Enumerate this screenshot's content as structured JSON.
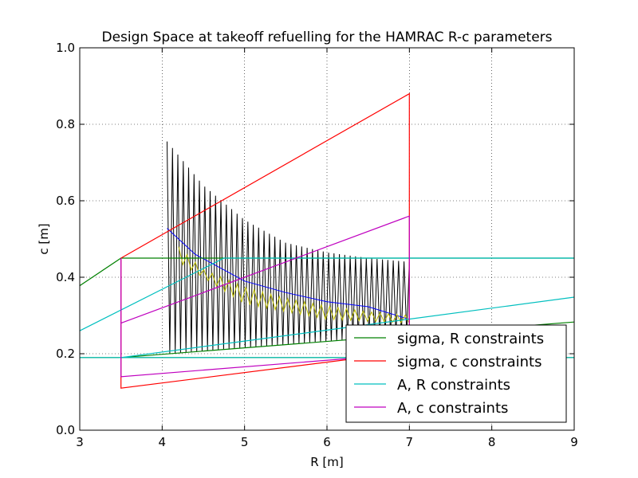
{
  "chart_data": {
    "type": "line",
    "title": "Design Space at takeoff refuelling for the HAMRAC R-c parameters",
    "xlabel": "R [m]",
    "ylabel": "c [m]",
    "xlim": [
      3,
      9
    ],
    "ylim": [
      0.0,
      1.0
    ],
    "xticks": [
      "3",
      "4",
      "5",
      "6",
      "7",
      "8",
      "9"
    ],
    "yticks": [
      "0.0",
      "0.2",
      "0.4",
      "0.6",
      "0.8",
      "1.0"
    ],
    "grid": true,
    "legend_position": "lower-right",
    "series": [
      {
        "name": "sigma, R constraints",
        "color": "#008000",
        "segments": [
          [
            [
              3,
              0.378
            ],
            [
              3.5,
              0.45
            ],
            [
              9,
              0.45
            ]
          ],
          [
            [
              3,
              0.19
            ],
            [
              9,
              0.19
            ]
          ],
          [
            [
              3.5,
              0.19
            ],
            [
              9,
              0.283
            ]
          ]
        ]
      },
      {
        "name": "sigma, c constraints",
        "color": "#ff0000",
        "segments": [
          [
            [
              3.5,
              0.45
            ],
            [
              3.5,
              0.11
            ],
            [
              7,
              0.205
            ],
            [
              7,
              0.88
            ],
            [
              3.5,
              0.45
            ]
          ]
        ]
      },
      {
        "name": "A, R constraints",
        "color": "#00bfbf",
        "segments": [
          [
            [
              3,
              0.26
            ],
            [
              4.75,
              0.45
            ],
            [
              9,
              0.45
            ]
          ],
          [
            [
              3,
              0.19
            ],
            [
              9,
              0.19
            ]
          ],
          [
            [
              3.5,
              0.19
            ],
            [
              9,
              0.348
            ]
          ]
        ]
      },
      {
        "name": "A, c constraints",
        "color": "#bf00bf",
        "segments": [
          [
            [
              3.5,
              0.45
            ],
            [
              3.5,
              0.14
            ],
            [
              7,
              0.2
            ],
            [
              7,
              0.56
            ],
            [
              3.5,
              0.28
            ]
          ]
        ]
      }
    ],
    "unlabeled_curves": [
      {
        "color": "#000000",
        "kind": "sawtooth",
        "upper": [
          [
            4.06,
            0.755
          ],
          [
            4.5,
            0.64
          ],
          [
            5,
            0.55
          ],
          [
            5.5,
            0.49
          ],
          [
            6,
            0.465
          ],
          [
            6.5,
            0.45
          ],
          [
            7,
            0.44
          ]
        ],
        "lower": [
          [
            3.5,
            0.19
          ],
          [
            7,
            0.25
          ]
        ]
      },
      {
        "color": "#0000ff",
        "kind": "line",
        "points": [
          [
            4.06,
            0.528
          ],
          [
            4.4,
            0.46
          ],
          [
            5,
            0.39
          ],
          [
            5.5,
            0.36
          ],
          [
            6,
            0.336
          ],
          [
            6.5,
            0.323
          ],
          [
            7,
            0.29
          ]
        ]
      },
      {
        "color": "#bfbf00",
        "kind": "sawtooth",
        "upper": [
          [
            4.2,
            0.48
          ],
          [
            4.5,
            0.42
          ],
          [
            5,
            0.375
          ],
          [
            5.5,
            0.345
          ],
          [
            6,
            0.325
          ],
          [
            6.5,
            0.31
          ],
          [
            7,
            0.3
          ]
        ],
        "lower": [
          [
            4.2,
            0.44
          ],
          [
            5,
            0.33
          ],
          [
            6,
            0.29
          ],
          [
            7,
            0.28
          ]
        ]
      }
    ]
  }
}
